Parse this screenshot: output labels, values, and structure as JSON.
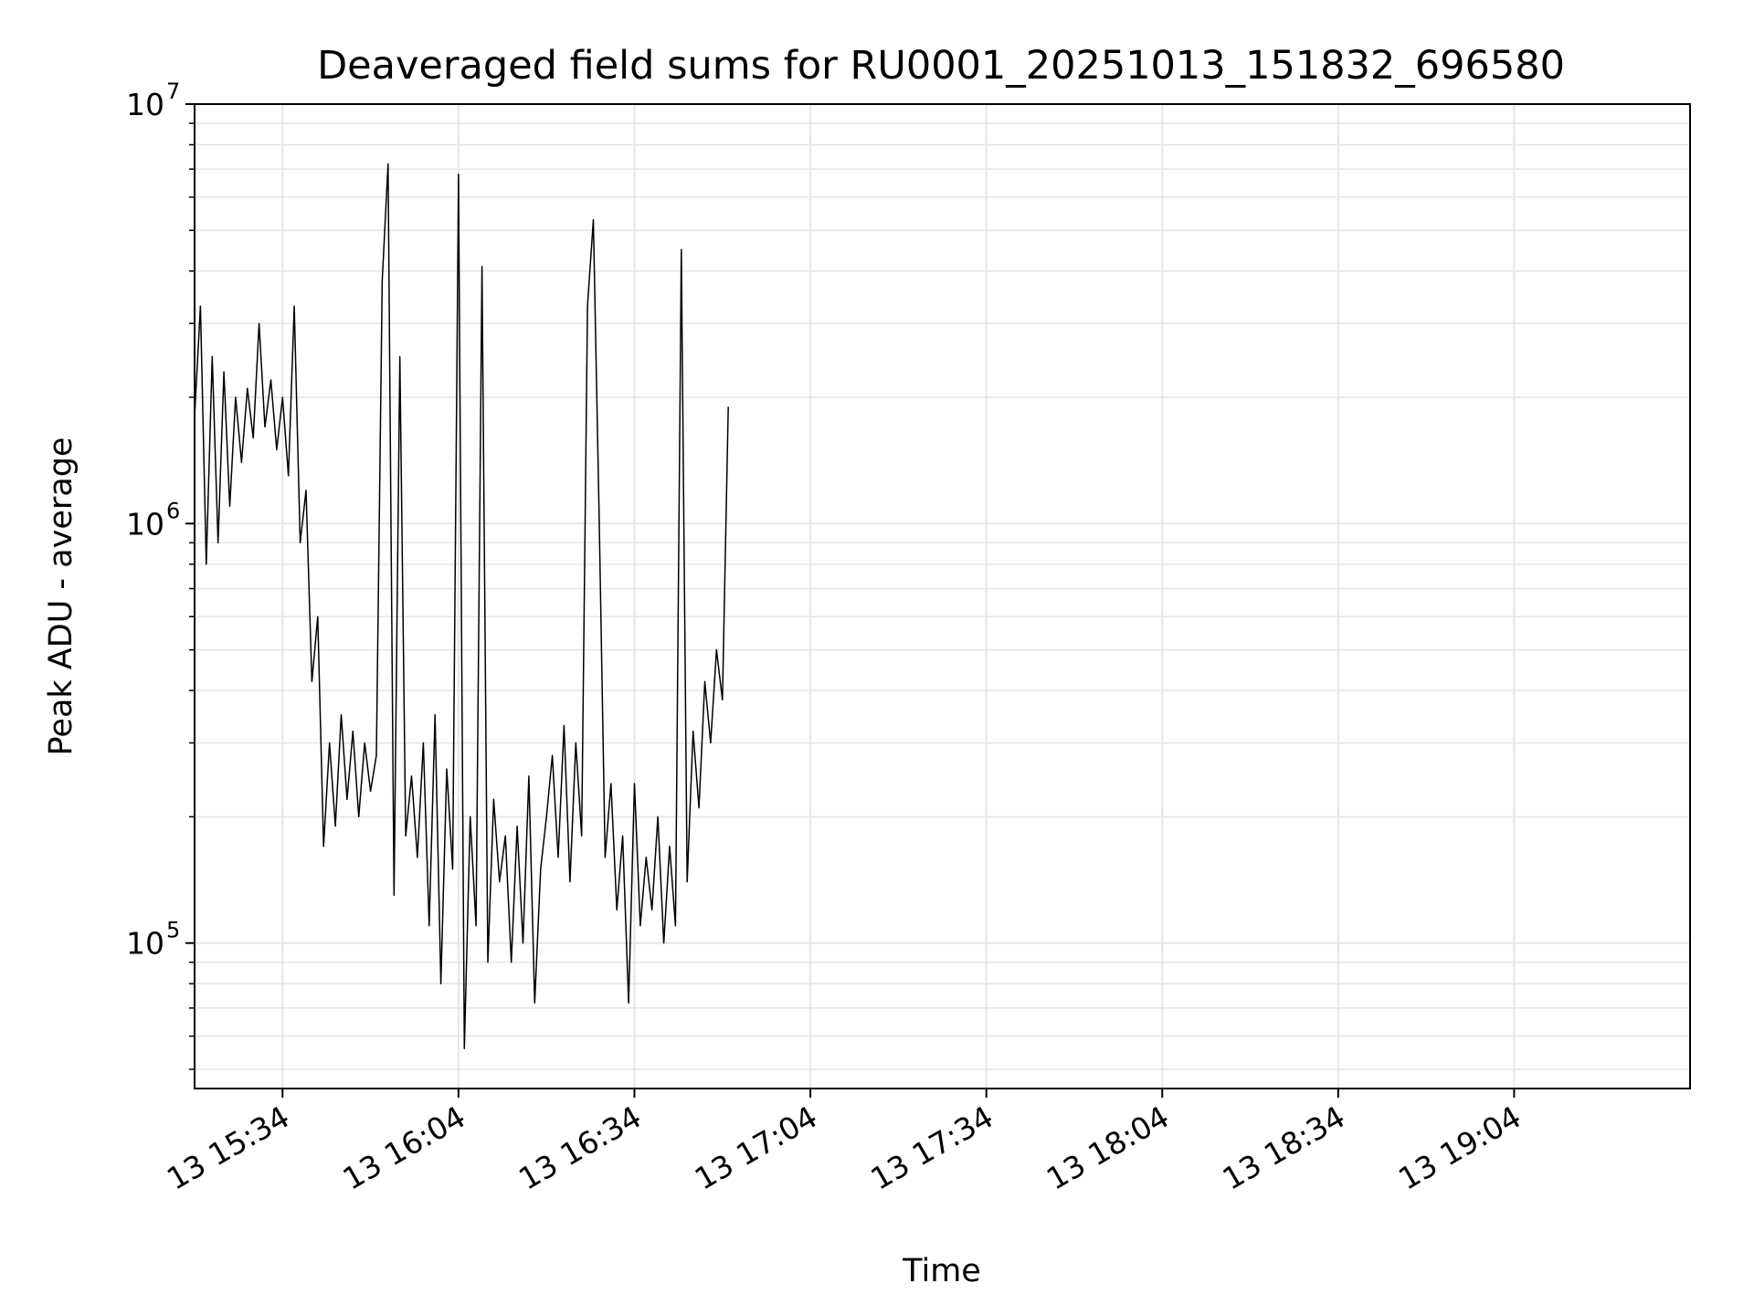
{
  "chart_data": {
    "type": "line",
    "title": "Deaveraged field sums for RU0001_20251013_151832_696580",
    "xlabel": "Time",
    "ylabel": "Peak ADU - average",
    "y_scale": "log",
    "ylim": [
      45000,
      10000000
    ],
    "y_ticks": [
      {
        "base": "10",
        "exp": "5"
      },
      {
        "base": "10",
        "exp": "6"
      },
      {
        "base": "10",
        "exp": "7"
      }
    ],
    "xlim": [
      "2025-10-13 15:19",
      "2025-10-13 19:34"
    ],
    "x_ticks": [
      "13 15:34",
      "13 16:04",
      "13 16:34",
      "13 17:04",
      "13 17:34",
      "13 18:04",
      "13 18:34",
      "13 19:04"
    ],
    "x_tick_times": [
      "2025-10-13 15:34",
      "2025-10-13 16:04",
      "2025-10-13 16:34",
      "2025-10-13 17:04",
      "2025-10-13 17:34",
      "2025-10-13 18:04",
      "2025-10-13 18:34",
      "2025-10-13 19:04"
    ],
    "grid": true,
    "line_color": "#000000",
    "grid_color": "#e6e6e6",
    "series": [
      {
        "points": [
          [
            "2025-10-13 15:19",
            1800000
          ],
          [
            "2025-10-13 15:20",
            3300000
          ],
          [
            "2025-10-13 15:21",
            800000
          ],
          [
            "2025-10-13 15:22",
            2500000
          ],
          [
            "2025-10-13 15:23",
            900000
          ],
          [
            "2025-10-13 15:24",
            2300000
          ],
          [
            "2025-10-13 15:25",
            1100000
          ],
          [
            "2025-10-13 15:26",
            2000000
          ],
          [
            "2025-10-13 15:27",
            1400000
          ],
          [
            "2025-10-13 15:28",
            2100000
          ],
          [
            "2025-10-13 15:29",
            1600000
          ],
          [
            "2025-10-13 15:30",
            3000000
          ],
          [
            "2025-10-13 15:31",
            1700000
          ],
          [
            "2025-10-13 15:32",
            2200000
          ],
          [
            "2025-10-13 15:33",
            1500000
          ],
          [
            "2025-10-13 15:34",
            2000000
          ],
          [
            "2025-10-13 15:35",
            1300000
          ],
          [
            "2025-10-13 15:36",
            3300000
          ],
          [
            "2025-10-13 15:37",
            900000
          ],
          [
            "2025-10-13 15:38",
            1200000
          ],
          [
            "2025-10-13 15:39",
            420000
          ],
          [
            "2025-10-13 15:40",
            600000
          ],
          [
            "2025-10-13 15:41",
            170000
          ],
          [
            "2025-10-13 15:42",
            300000
          ],
          [
            "2025-10-13 15:43",
            190000
          ],
          [
            "2025-10-13 15:44",
            350000
          ],
          [
            "2025-10-13 15:45",
            220000
          ],
          [
            "2025-10-13 15:46",
            320000
          ],
          [
            "2025-10-13 15:47",
            200000
          ],
          [
            "2025-10-13 15:48",
            300000
          ],
          [
            "2025-10-13 15:49",
            230000
          ],
          [
            "2025-10-13 15:50",
            280000
          ],
          [
            "2025-10-13 15:51",
            3800000
          ],
          [
            "2025-10-13 15:52",
            7200000
          ],
          [
            "2025-10-13 15:53",
            130000
          ],
          [
            "2025-10-13 15:54",
            2500000
          ],
          [
            "2025-10-13 15:55",
            180000
          ],
          [
            "2025-10-13 15:56",
            250000
          ],
          [
            "2025-10-13 15:57",
            160000
          ],
          [
            "2025-10-13 15:58",
            300000
          ],
          [
            "2025-10-13 15:59",
            110000
          ],
          [
            "2025-10-13 16:00",
            350000
          ],
          [
            "2025-10-13 16:01",
            80000
          ],
          [
            "2025-10-13 16:02",
            260000
          ],
          [
            "2025-10-13 16:03",
            150000
          ],
          [
            "2025-10-13 16:04",
            6800000
          ],
          [
            "2025-10-13 16:05",
            56000
          ],
          [
            "2025-10-13 16:06",
            200000
          ],
          [
            "2025-10-13 16:07",
            110000
          ],
          [
            "2025-10-13 16:08",
            4100000
          ],
          [
            "2025-10-13 16:09",
            90000
          ],
          [
            "2025-10-13 16:10",
            220000
          ],
          [
            "2025-10-13 16:11",
            140000
          ],
          [
            "2025-10-13 16:12",
            180000
          ],
          [
            "2025-10-13 16:13",
            90000
          ],
          [
            "2025-10-13 16:14",
            190000
          ],
          [
            "2025-10-13 16:15",
            100000
          ],
          [
            "2025-10-13 16:16",
            250000
          ],
          [
            "2025-10-13 16:17",
            72000
          ],
          [
            "2025-10-13 16:18",
            150000
          ],
          [
            "2025-10-13 16:19",
            200000
          ],
          [
            "2025-10-13 16:20",
            280000
          ],
          [
            "2025-10-13 16:21",
            160000
          ],
          [
            "2025-10-13 16:22",
            330000
          ],
          [
            "2025-10-13 16:23",
            140000
          ],
          [
            "2025-10-13 16:24",
            300000
          ],
          [
            "2025-10-13 16:25",
            180000
          ],
          [
            "2025-10-13 16:26",
            3300000
          ],
          [
            "2025-10-13 16:27",
            5300000
          ],
          [
            "2025-10-13 16:28",
            1000000
          ],
          [
            "2025-10-13 16:29",
            160000
          ],
          [
            "2025-10-13 16:30",
            240000
          ],
          [
            "2025-10-13 16:31",
            120000
          ],
          [
            "2025-10-13 16:32",
            180000
          ],
          [
            "2025-10-13 16:33",
            72000
          ],
          [
            "2025-10-13 16:34",
            240000
          ],
          [
            "2025-10-13 16:35",
            110000
          ],
          [
            "2025-10-13 16:36",
            160000
          ],
          [
            "2025-10-13 16:37",
            120000
          ],
          [
            "2025-10-13 16:38",
            200000
          ],
          [
            "2025-10-13 16:39",
            100000
          ],
          [
            "2025-10-13 16:40",
            170000
          ],
          [
            "2025-10-13 16:41",
            110000
          ],
          [
            "2025-10-13 16:42",
            4500000
          ],
          [
            "2025-10-13 16:43",
            140000
          ],
          [
            "2025-10-13 16:44",
            320000
          ],
          [
            "2025-10-13 16:45",
            210000
          ],
          [
            "2025-10-13 16:46",
            420000
          ],
          [
            "2025-10-13 16:47",
            300000
          ],
          [
            "2025-10-13 16:48",
            500000
          ],
          [
            "2025-10-13 16:49",
            380000
          ],
          [
            "2025-10-13 16:50",
            1900000
          ]
        ]
      }
    ]
  }
}
